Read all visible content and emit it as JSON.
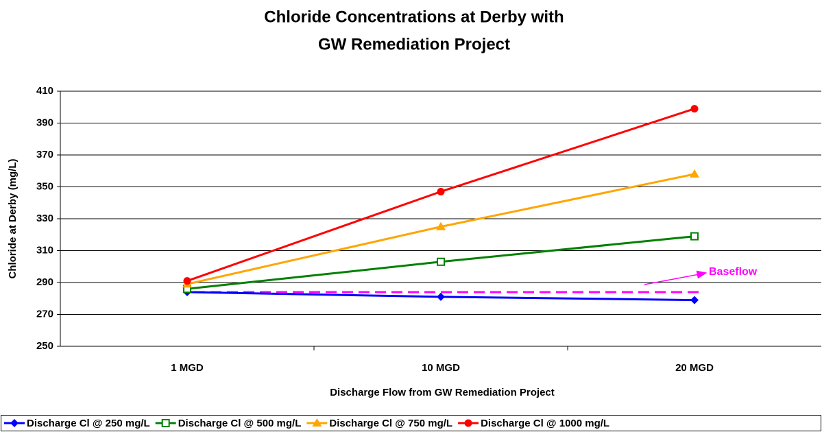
{
  "chart_data": {
    "type": "line",
    "title": [
      "Chloride Concentrations at Derby with",
      "GW Remediation Project"
    ],
    "x_label": "Discharge Flow from GW Remediation Project",
    "y_label": "Chloride at Derby (mg/L)",
    "categories": [
      "1 MGD",
      "10 MGD",
      "20 MGD"
    ],
    "series": [
      {
        "name": "Discharge Cl @ 250 mg/L",
        "color": "#0000ff",
        "marker": "diamond",
        "values": [
          284,
          281,
          279
        ]
      },
      {
        "name": "Discharge Cl @ 500 mg/L",
        "color": "#008000",
        "marker": "square",
        "values": [
          286,
          303,
          319
        ]
      },
      {
        "name": "Discharge Cl @ 750 mg/L",
        "color": "#ffa500",
        "marker": "triangle",
        "values": [
          289,
          325,
          358
        ]
      },
      {
        "name": "Discharge Cl @ 1000 mg/L",
        "color": "#ff0000",
        "marker": "circle",
        "values": [
          291,
          347,
          399
        ]
      }
    ],
    "baseline": {
      "label": "Baseflow",
      "value": 284,
      "color": "#ff00ff"
    },
    "ylim": [
      250,
      410
    ],
    "yticks": [
      250,
      270,
      290,
      310,
      330,
      350,
      370,
      390,
      410
    ],
    "grid": true,
    "legend": "bottom"
  }
}
